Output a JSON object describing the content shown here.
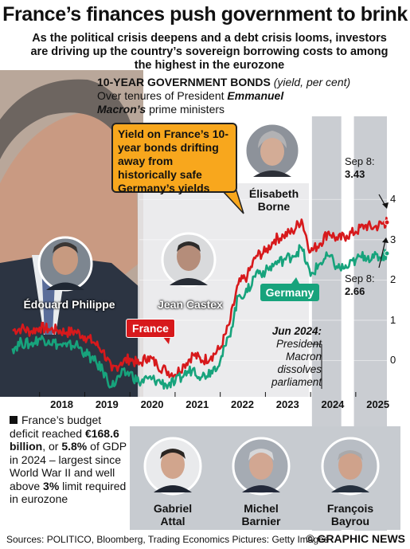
{
  "title": "France’s finances push government to brink",
  "subtitle": "As the political crisis deepens and a debt crisis looms, investors are driving up the country’s sovereign borrowing costs to among the highest in the eurozone",
  "chart_data": {
    "type": "line",
    "title": "10-YEAR GOVERNMENT BONDS",
    "title_note": "(yield, per cent)",
    "subtitle_plain": "Over tenures of President",
    "subtitle_bold": "Emmanuel Macron’s",
    "subtitle_tail": "prime ministers",
    "x_tick_labels": [
      "2018",
      "2019",
      "2020",
      "2021",
      "2022",
      "2023",
      "2024",
      "2025"
    ],
    "y_tick_labels": [
      "4",
      "3",
      "2",
      "1",
      "0"
    ],
    "ylim": [
      -0.9,
      4.4
    ],
    "series": [
      {
        "name": "France",
        "color": "#d7191c",
        "x": [
          2017.4,
          2017.6,
          2017.8,
          2018.0,
          2018.2,
          2018.4,
          2018.6,
          2018.8,
          2019.0,
          2019.2,
          2019.4,
          2019.6,
          2019.8,
          2020.0,
          2020.2,
          2020.4,
          2020.6,
          2020.8,
          2021.0,
          2021.2,
          2021.4,
          2021.6,
          2021.8,
          2022.0,
          2022.2,
          2022.4,
          2022.6,
          2022.8,
          2023.0,
          2023.2,
          2023.4,
          2023.6,
          2023.8,
          2024.0,
          2024.2,
          2024.4,
          2024.6,
          2024.8,
          2025.0,
          2025.2,
          2025.4,
          2025.6,
          2025.69
        ],
        "y": [
          0.75,
          0.8,
          0.72,
          0.82,
          0.78,
          0.75,
          0.7,
          0.72,
          0.6,
          0.45,
          0.25,
          -0.25,
          -0.05,
          0.05,
          -0.1,
          0.1,
          -0.1,
          -0.25,
          -0.35,
          -0.1,
          0.15,
          0.0,
          0.1,
          0.3,
          0.9,
          1.9,
          2.1,
          2.6,
          2.7,
          3.0,
          3.1,
          3.2,
          3.5,
          2.7,
          2.9,
          3.2,
          3.0,
          3.1,
          3.2,
          3.35,
          3.3,
          3.4,
          3.43
        ]
      },
      {
        "name": "Germany",
        "color": "#17a37c",
        "x": [
          2017.4,
          2017.6,
          2017.8,
          2018.0,
          2018.2,
          2018.4,
          2018.6,
          2018.8,
          2019.0,
          2019.2,
          2019.4,
          2019.6,
          2019.8,
          2020.0,
          2020.2,
          2020.4,
          2020.6,
          2020.8,
          2021.0,
          2021.2,
          2021.4,
          2021.6,
          2021.8,
          2022.0,
          2022.2,
          2022.4,
          2022.6,
          2022.8,
          2023.0,
          2023.2,
          2023.4,
          2023.6,
          2023.8,
          2024.0,
          2024.2,
          2024.4,
          2024.6,
          2024.8,
          2025.0,
          2025.2,
          2025.4,
          2025.6,
          2025.69
        ],
        "y": [
          0.3,
          0.45,
          0.4,
          0.55,
          0.5,
          0.4,
          0.35,
          0.4,
          0.2,
          0.0,
          -0.25,
          -0.65,
          -0.35,
          -0.3,
          -0.55,
          -0.45,
          -0.5,
          -0.6,
          -0.55,
          -0.35,
          -0.2,
          -0.4,
          -0.25,
          0.0,
          0.6,
          1.6,
          1.7,
          2.2,
          2.2,
          2.4,
          2.5,
          2.6,
          2.8,
          2.1,
          2.4,
          2.6,
          2.3,
          2.3,
          2.5,
          2.6,
          2.55,
          2.6,
          2.66
        ]
      }
    ],
    "annotations": [
      {
        "text": "Sep 8:",
        "value": "3.43"
      },
      {
        "text": "Sep 8:",
        "value": "2.66"
      },
      {
        "lines": [
          "Jun 2024:",
          "President",
          "Macron",
          "dissolves",
          "parliament"
        ]
      }
    ],
    "tenures": [
      {
        "name": "Édouard Philippe",
        "from": 2017.37,
        "to": 2020.51
      },
      {
        "name": "Jean Castex",
        "from": 2020.51,
        "to": 2022.38
      },
      {
        "name": "Élisabeth Borne",
        "from": 2022.38,
        "to": 2024.03
      },
      {
        "name": "Gabriel Attal",
        "from": 2024.03,
        "to": 2024.68
      },
      {
        "name": "Michel Barnier",
        "from": 2024.68,
        "to": 2024.96
      },
      {
        "name": "François Bayrou",
        "from": 2024.96,
        "to": 2025.69
      }
    ]
  },
  "callout": "Yield on France’s 10-year bonds drifting away from historically safe Germany’s yields",
  "prime_ministers": {
    "philippe": "Édouard Philippe",
    "castex": "Jean Castex",
    "borne_first": "Élisabeth",
    "borne_last": "Borne",
    "attal_first": "Gabriel",
    "attal_last": "Attal",
    "barnier_first": "Michel",
    "barnier_last": "Barnier",
    "bayrou_first": "François",
    "bayrou_last": "Bayrou"
  },
  "labels": {
    "france": "France",
    "germany": "Germany",
    "sep_fr_label": "Sep 8:",
    "sep_fr_value": "3.43",
    "sep_de_label": "Sep 8:",
    "sep_de_value": "2.66",
    "jun_title": "Jun 2024:",
    "jun_text": "President Macron dissolves parliament"
  },
  "deficit": {
    "t1": "France’s budget deficit reached",
    "amount": "€168.6 billion",
    "t2": ", or",
    "pct": "5.8%",
    "t3": "of GDP in 2024 – largest since World War II and well above",
    "limit": "3%",
    "t4": "limit required in eurozone"
  },
  "footer": {
    "sources": "Sources: POLITICO, Bloomberg, Trading Economics  Pictures: Getty Images",
    "brand": "© GRAPHIC NEWS"
  },
  "colors": {
    "france": "#d7191c",
    "germany": "#17a37c",
    "callout": "#f8a71d",
    "tenure_band": "#c4c8cd"
  }
}
